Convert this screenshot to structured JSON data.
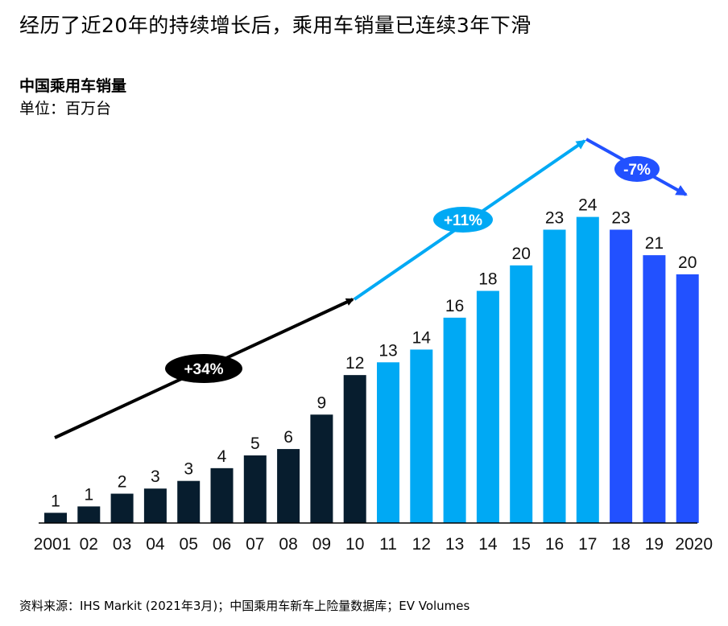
{
  "header": {
    "headline": "经历了近20年的持续增长后，乘用车销量已连续3年下滑",
    "chart_title": "中国乘用车销量",
    "unit": "单位：百万台"
  },
  "footer": {
    "source": "资料来源：IHS Markit (2021年3月)；中国乘用车新车上险量数据库；EV Volumes"
  },
  "colors": {
    "phase1": "#071d2e",
    "phase2": "#00a9f4",
    "phase3": "#2251ff",
    "arrow1": "#000000",
    "axis": "#000000"
  },
  "chart_data": {
    "type": "bar",
    "title": "中国乘用车销量",
    "ylabel": "单位：百万台",
    "xlabel": "",
    "categories": [
      "2001",
      "02",
      "03",
      "04",
      "05",
      "06",
      "07",
      "08",
      "09",
      "10",
      "11",
      "12",
      "13",
      "14",
      "15",
      "16",
      "17",
      "18",
      "19",
      "2020"
    ],
    "values": [
      1,
      1,
      2,
      3,
      3,
      4,
      5,
      6,
      9,
      12,
      13,
      14,
      16,
      18,
      20,
      23,
      24,
      23,
      21,
      20
    ],
    "bar_heights_actual": [
      0.8,
      1.3,
      2.3,
      2.7,
      3.3,
      4.3,
      5.3,
      5.8,
      8.5,
      11.6,
      12.6,
      13.6,
      16.1,
      18.2,
      20.2,
      23.0,
      24.0,
      23.0,
      21.0,
      19.5
    ],
    "phase": [
      1,
      1,
      1,
      1,
      1,
      1,
      1,
      1,
      1,
      1,
      2,
      2,
      2,
      2,
      2,
      2,
      2,
      3,
      3,
      3
    ],
    "ylim": [
      0,
      24
    ],
    "grid": false,
    "annotations": [
      {
        "label": "+34%",
        "from": "2001",
        "to": "10",
        "color": "#000000"
      },
      {
        "label": "+11%",
        "from": "10",
        "to": "17",
        "color": "#00a9f4"
      },
      {
        "label": "-7%",
        "from": "17",
        "to": "2020",
        "color": "#2251ff"
      }
    ]
  }
}
